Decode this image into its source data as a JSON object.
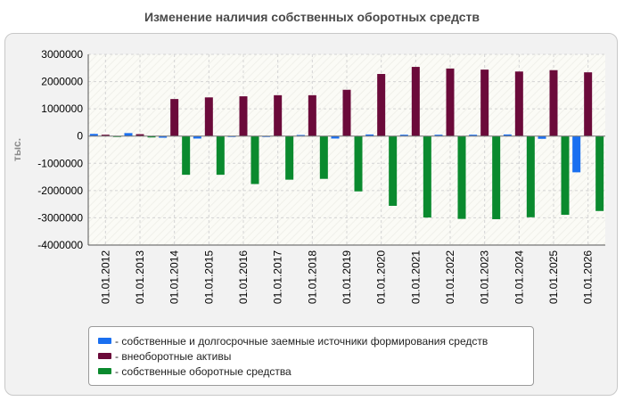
{
  "chart_data": {
    "type": "bar",
    "title": "Изменение наличия собственных оборотных средств",
    "ylabel": "тыс.",
    "xlabel": "",
    "ylim": [
      -4000000,
      3000000
    ],
    "yticks": [
      3000000,
      2000000,
      1000000,
      0,
      -1000000,
      -2000000,
      -3000000,
      -4000000
    ],
    "grid": true,
    "legend_position": "bottom",
    "categories": [
      "01.01.2012",
      "01.01.2013",
      "01.01.2014",
      "01.01.2015",
      "01.01.2016",
      "01.01.2017",
      "01.01.2018",
      "01.01.2019",
      "01.01.2020",
      "01.01.2021",
      "01.01.2022",
      "01.01.2023",
      "01.01.2024",
      "01.01.2025",
      "01.01.2026"
    ],
    "series": [
      {
        "name": "- собственные и долгосрочные заемные источники формирования средств",
        "color": "#1a6ff0",
        "values": [
          80000,
          110000,
          -60000,
          -90000,
          -30000,
          -20000,
          40000,
          -90000,
          60000,
          50000,
          50000,
          50000,
          60000,
          -100000,
          -1330000
        ]
      },
      {
        "name": "- внеоборотные активы",
        "color": "#6b0a3a",
        "values": [
          50000,
          70000,
          1360000,
          1420000,
          1460000,
          1500000,
          1500000,
          1700000,
          2280000,
          2540000,
          2480000,
          2440000,
          2370000,
          2420000,
          2340000
        ]
      },
      {
        "name": "- собственные оборотные средства",
        "color": "#0a8a2e",
        "values": [
          -20000,
          -50000,
          -1420000,
          -1420000,
          -1760000,
          -1600000,
          -1570000,
          -2030000,
          -2560000,
          -2990000,
          -3040000,
          -3050000,
          -2980000,
          -2890000,
          -2750000
        ]
      }
    ]
  }
}
